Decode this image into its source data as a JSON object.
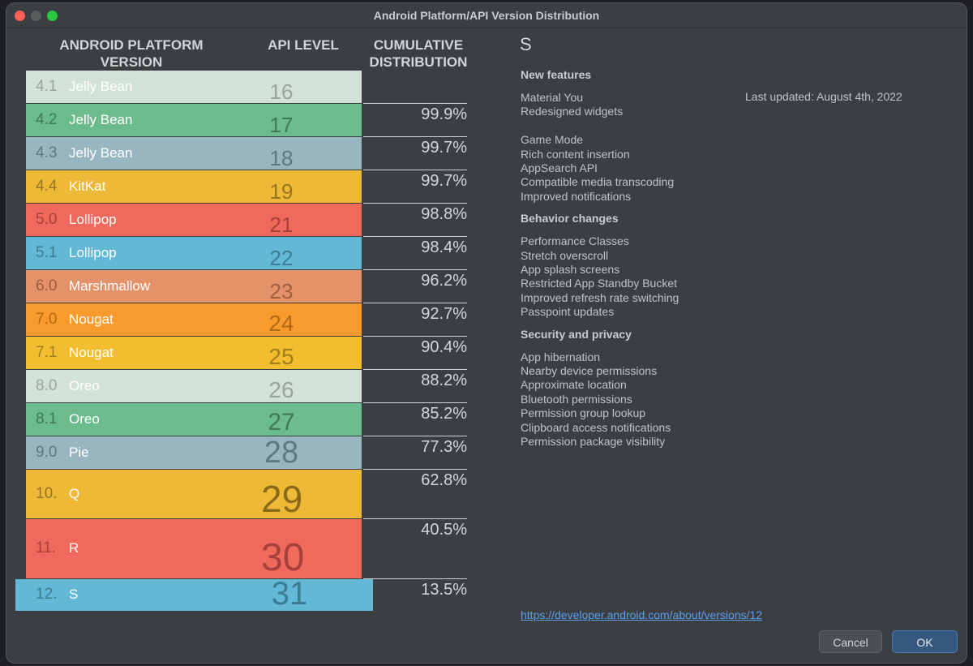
{
  "window": {
    "title": "Android Platform/API Version Distribution"
  },
  "table": {
    "headers": {
      "platform": "ANDROID PLATFORM VERSION",
      "api": "API LEVEL",
      "cumulative": "CUMULATIVE DISTRIBUTION"
    },
    "rows": [
      {
        "version": "4.1",
        "name": "Jelly Bean",
        "api": "16",
        "cumulative": "",
        "bg": "#d3e2d6",
        "num_color": "#9aa39c",
        "api_color": "#9aa39c"
      },
      {
        "version": "4.2",
        "name": "Jelly Bean",
        "api": "17",
        "cumulative": "99.9%",
        "bg": "#6cbb8c",
        "num_color": "#3f7a57",
        "api_color": "#3f7a57"
      },
      {
        "version": "4.3",
        "name": "Jelly Bean",
        "api": "18",
        "cumulative": "99.7%",
        "bg": "#97b6c2",
        "num_color": "#5e7882",
        "api_color": "#5e7882"
      },
      {
        "version": "4.4",
        "name": "KitKat",
        "api": "19",
        "cumulative": "99.7%",
        "bg": "#edb936",
        "num_color": "#9a7521",
        "api_color": "#9a7521"
      },
      {
        "version": "5.0",
        "name": "Lollipop",
        "api": "21",
        "cumulative": "98.8%",
        "bg": "#ef6a5d",
        "num_color": "#a8403a",
        "api_color": "#a8403a"
      },
      {
        "version": "5.1",
        "name": "Lollipop",
        "api": "22",
        "cumulative": "98.4%",
        "bg": "#63b8d6",
        "num_color": "#3a7c93",
        "api_color": "#3a7c93"
      },
      {
        "version": "6.0",
        "name": "Marshmallow",
        "api": "23",
        "cumulative": "96.2%",
        "bg": "#e3926a",
        "num_color": "#a05e3d",
        "api_color": "#a05e3d"
      },
      {
        "version": "7.0",
        "name": "Nougat",
        "api": "24",
        "cumulative": "92.7%",
        "bg": "#f99a2c",
        "num_color": "#b06a16",
        "api_color": "#b06a16"
      },
      {
        "version": "7.1",
        "name": "Nougat",
        "api": "25",
        "cumulative": "90.4%",
        "bg": "#f2bd2e",
        "num_color": "#a27d1c",
        "api_color": "#a27d1c"
      },
      {
        "version": "8.0",
        "name": "Oreo",
        "api": "26",
        "cumulative": "88.2%",
        "bg": "#d3e2d6",
        "num_color": "#9aa39c",
        "api_color": "#9aa39c"
      },
      {
        "version": "8.1",
        "name": "Oreo",
        "api": "27",
        "cumulative": "85.2%",
        "bg": "#6cbb8c",
        "num_color": "#3f7a57",
        "api_color": "#3f7a57"
      },
      {
        "version": "9.0",
        "name": "Pie",
        "api": "28",
        "cumulative": "77.3%",
        "bg": "#97b6c2",
        "num_color": "#5e7882",
        "api_color": "#5e7882"
      },
      {
        "version": "10.",
        "name": "Q",
        "api": "29",
        "cumulative": "62.8%",
        "bg": "#edb936",
        "num_color": "#9a7521",
        "api_color": "#8a6a1a"
      },
      {
        "version": "11.",
        "name": "R",
        "api": "30",
        "cumulative": "40.5%",
        "bg": "#ef6a5d",
        "num_color": "#a8403a",
        "api_color": "#a8403a"
      },
      {
        "version": "12.",
        "name": "S",
        "api": "31",
        "cumulative": "13.5%",
        "bg": "#63b8d6",
        "num_color": "#3a7c93",
        "api_color": "#3a7c93"
      }
    ]
  },
  "details": {
    "version_name": "S",
    "last_updated": "Last updated: August 4th, 2022",
    "sections": [
      {
        "title": "New features",
        "groups": [
          [
            "Material You",
            "Redesigned widgets"
          ],
          [
            "Game Mode",
            "Rich content insertion",
            "AppSearch API",
            "Compatible media transcoding",
            "Improved notifications"
          ]
        ]
      },
      {
        "title": "Behavior changes",
        "groups": [
          [
            "Performance Classes",
            "Stretch overscroll",
            "App splash screens",
            "Restricted App Standby Bucket",
            "Improved refresh rate switching",
            "Passpoint updates"
          ]
        ]
      },
      {
        "title": "Security and privacy",
        "groups": [
          [
            "App hibernation",
            "Nearby device permissions",
            "Approximate location",
            "Bluetooth permissions",
            "Permission group lookup",
            "Clipboard access notifications",
            "Permission package visibility"
          ]
        ]
      }
    ],
    "link": "https://developer.android.com/about/versions/12"
  },
  "buttons": {
    "cancel": "Cancel",
    "ok": "OK"
  }
}
